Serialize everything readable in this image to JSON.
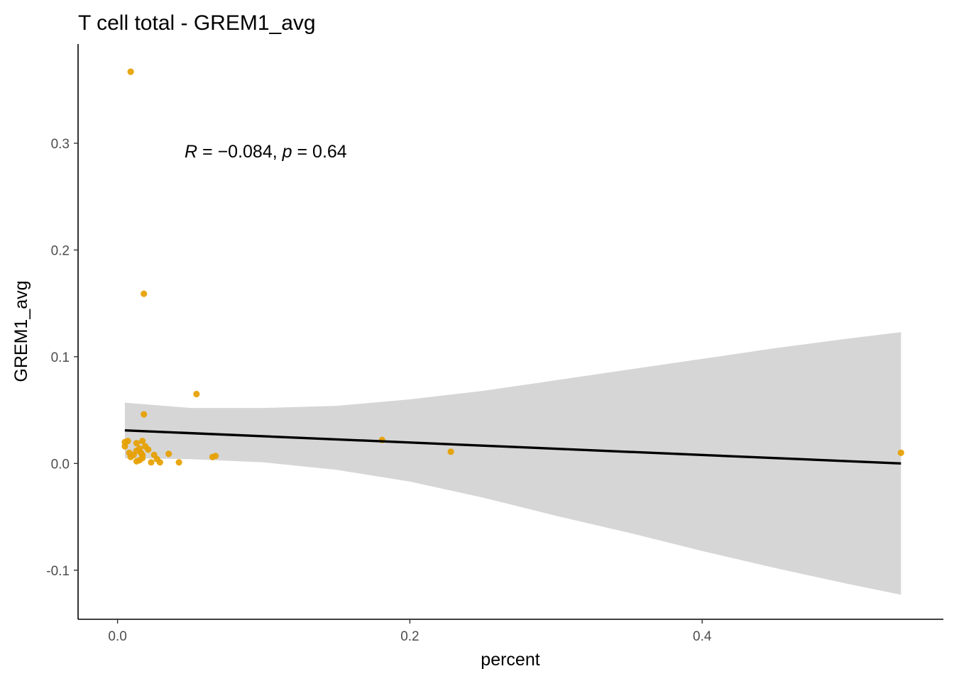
{
  "chart_data": {
    "type": "scatter",
    "title": "T cell total - GREM1_avg",
    "xlabel": "percent",
    "ylabel": "GREM1_avg",
    "xlim": [
      -0.027,
      0.565
    ],
    "ylim": [
      -0.146,
      0.393
    ],
    "x_ticks": [
      0.0,
      0.2,
      0.4
    ],
    "x_tick_labels": [
      "0.0",
      "0.2",
      "0.4"
    ],
    "y_ticks": [
      -0.1,
      0.0,
      0.1,
      0.2,
      0.3
    ],
    "y_tick_labels": [
      "-0.1",
      "0.0",
      "0.1",
      "0.2",
      "0.3"
    ],
    "grid": false,
    "legend": "none",
    "point_color": "#E69F00",
    "band_color": "#D6D6D6",
    "line_color": "#000000",
    "annotation": {
      "r_symbol": "R",
      "r_equals": " = ",
      "r_value": "−0.084",
      "separator": ", ",
      "p_symbol": "p",
      "p_equals": " = ",
      "p_value": "0.64"
    },
    "points": [
      {
        "x": 0.009,
        "y": 0.367
      },
      {
        "x": 0.018,
        "y": 0.159
      },
      {
        "x": 0.054,
        "y": 0.065
      },
      {
        "x": 0.018,
        "y": 0.046
      },
      {
        "x": 0.181,
        "y": 0.022
      },
      {
        "x": 0.228,
        "y": 0.011
      },
      {
        "x": 0.536,
        "y": 0.01
      },
      {
        "x": 0.005,
        "y": 0.02
      },
      {
        "x": 0.007,
        "y": 0.021
      },
      {
        "x": 0.005,
        "y": 0.016
      },
      {
        "x": 0.013,
        "y": 0.019
      },
      {
        "x": 0.017,
        "y": 0.021
      },
      {
        "x": 0.008,
        "y": 0.01
      },
      {
        "x": 0.011,
        "y": 0.008
      },
      {
        "x": 0.009,
        "y": 0.006
      },
      {
        "x": 0.013,
        "y": 0.012
      },
      {
        "x": 0.015,
        "y": 0.014
      },
      {
        "x": 0.016,
        "y": 0.01
      },
      {
        "x": 0.019,
        "y": 0.016
      },
      {
        "x": 0.021,
        "y": 0.013
      },
      {
        "x": 0.017,
        "y": 0.008
      },
      {
        "x": 0.013,
        "y": 0.002
      },
      {
        "x": 0.015,
        "y": 0.003
      },
      {
        "x": 0.017,
        "y": 0.005
      },
      {
        "x": 0.023,
        "y": 0.001
      },
      {
        "x": 0.025,
        "y": 0.008
      },
      {
        "x": 0.027,
        "y": 0.004
      },
      {
        "x": 0.029,
        "y": 0.001
      },
      {
        "x": 0.035,
        "y": 0.009
      },
      {
        "x": 0.042,
        "y": 0.001
      },
      {
        "x": 0.065,
        "y": 0.006
      },
      {
        "x": 0.067,
        "y": 0.007
      }
    ],
    "fit_line": {
      "x": [
        0.005,
        0.536
      ],
      "y": [
        0.031,
        0.0
      ]
    },
    "confidence_band": {
      "x": [
        0.005,
        0.05,
        0.1,
        0.15,
        0.2,
        0.25,
        0.3,
        0.35,
        0.4,
        0.45,
        0.5,
        0.536
      ],
      "upper": [
        0.057,
        0.052,
        0.052,
        0.054,
        0.06,
        0.068,
        0.078,
        0.088,
        0.098,
        0.108,
        0.117,
        0.123
      ],
      "lower": [
        0.005,
        0.004,
        0.001,
        -0.006,
        -0.017,
        -0.032,
        -0.049,
        -0.065,
        -0.082,
        -0.098,
        -0.113,
        -0.123
      ]
    }
  }
}
